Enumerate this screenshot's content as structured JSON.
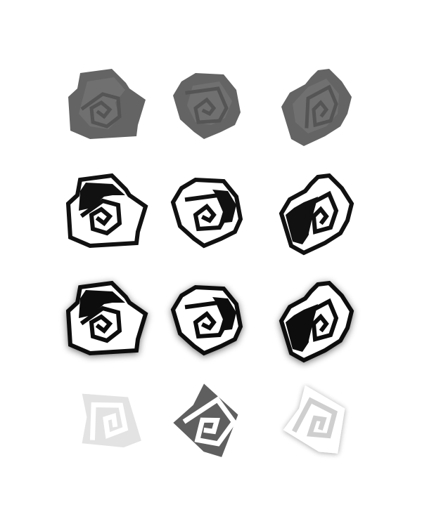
{
  "sheet": {
    "background": "#ffffff",
    "rows": [
      {
        "style": "flat-gray",
        "fill": "#646464",
        "inner_tone": "#7a7a7a",
        "items": [
          {
            "name": "rose-a-icon",
            "variant": "a"
          },
          {
            "name": "rose-b-icon",
            "variant": "b"
          },
          {
            "name": "rose-c-icon",
            "variant": "c"
          }
        ]
      },
      {
        "style": "black-outline",
        "stroke": "#111111",
        "fill": "#ffffff",
        "items": [
          {
            "name": "rose-a-icon",
            "variant": "a"
          },
          {
            "name": "rose-b-icon",
            "variant": "b"
          },
          {
            "name": "rose-c-icon",
            "variant": "c"
          }
        ]
      },
      {
        "style": "black-outline-shadow",
        "stroke": "#111111",
        "fill": "#ffffff",
        "shadow": "#000000",
        "items": [
          {
            "name": "rose-a-icon",
            "variant": "a"
          },
          {
            "name": "rose-b-icon",
            "variant": "b"
          },
          {
            "name": "rose-c-icon",
            "variant": "c"
          }
        ]
      },
      {
        "style": "simplified-tile",
        "items": [
          {
            "name": "rose-tile-light-icon",
            "fill": "#e3e3e3",
            "spiral": "#ffffff"
          },
          {
            "name": "rose-tile-dark-icon",
            "fill": "#5f5f5f",
            "spiral": "#ffffff"
          },
          {
            "name": "rose-tile-white-icon",
            "fill": "#ffffff",
            "spiral": "#cfcfcf",
            "shadow": "#000000"
          }
        ]
      }
    ]
  }
}
